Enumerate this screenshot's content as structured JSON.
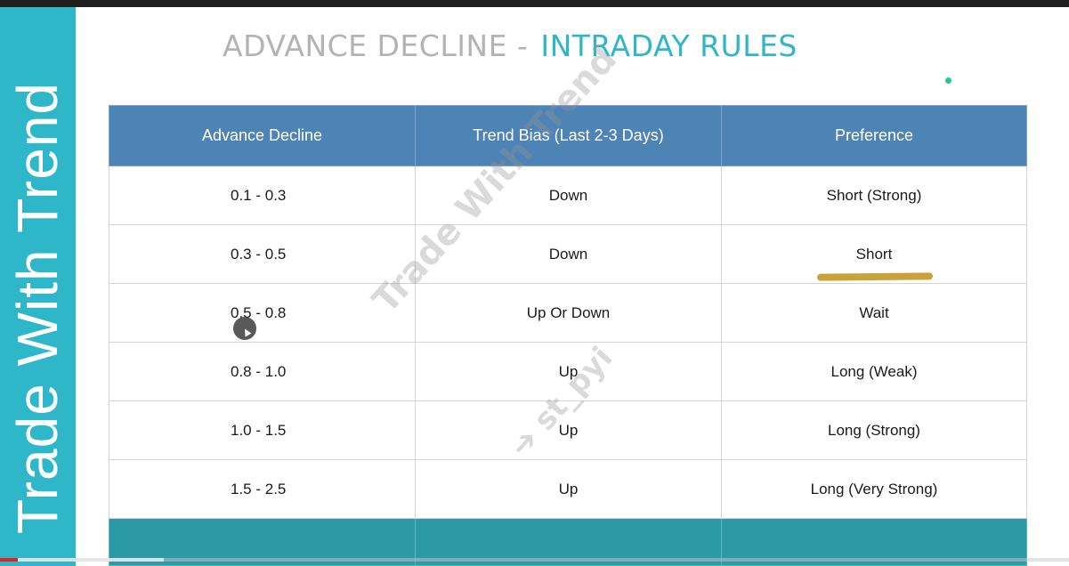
{
  "sidebar": {
    "brand_text": "Trade With Trend"
  },
  "header": {
    "title_part1": "ADVANCE DECLINE -",
    "title_part2": "INTRADAY RULES"
  },
  "table": {
    "columns": [
      "Advance Decline",
      "Trend Bias (Last 2-3 Days)",
      "Preference"
    ],
    "rows": [
      [
        "0.1 - 0.3",
        "Down",
        "Short (Strong)"
      ],
      [
        "0.3 - 0.5",
        "Down",
        "Short"
      ],
      [
        "0.5 - 0.8",
        "Up Or Down",
        "Wait"
      ],
      [
        "0.8 - 1.0",
        "Up",
        "Long (Weak)"
      ],
      [
        "1.0 - 1.5",
        "Up",
        "Long (Strong)"
      ],
      [
        "1.5 - 2.5",
        "Up",
        "Long (Very Strong)"
      ]
    ]
  },
  "watermark": {
    "text": "Trade With Trend",
    "handle": "➔ st_pyi"
  },
  "video": {
    "progress_fraction": 0.017,
    "buffered_fraction": 0.153
  },
  "colors": {
    "sidebar": "#2eb7c9",
    "header_row": "#4d83b5",
    "title_accent": "#2fb7c7",
    "title_muted": "#b3b3b3",
    "highlight": "#c9a23a",
    "progress": "#e52222"
  }
}
